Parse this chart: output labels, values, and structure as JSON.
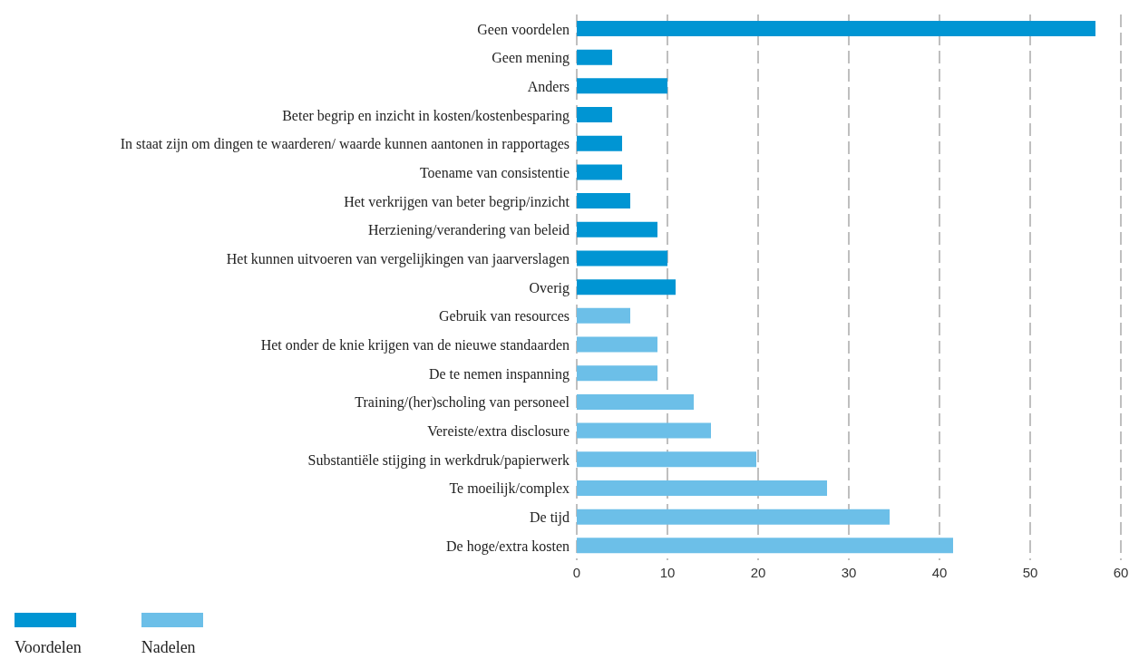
{
  "chart_data": {
    "type": "bar",
    "orientation": "horizontal",
    "categories": [
      "Geen voordelen",
      "Geen mening",
      "Anders",
      "Beter begrip en inzicht in kosten/kostenbesparing",
      "In staat zijn om dingen te waarderen/ waarde kunnen aantonen in rapportages",
      "Toename van consistentie",
      "Het verkrijgen van beter begrip/inzicht",
      "Herziening/verandering van beleid",
      "Het kunnen uitvoeren van vergelijkingen van jaarverslagen",
      "Overig",
      "Gebruik van resources",
      "Het onder de knie krijgen van de nieuwe standaarden",
      "De te nemen inspanning",
      "Training/(her)scholing van personeel",
      "Vereiste/extra disclosure",
      "Substantiële stijging in werkdruk/papierwerk",
      "Te moeilijk/complex",
      "De tijd",
      "De hoge/extra kosten"
    ],
    "series": [
      {
        "name": "Voordelen",
        "color": "#0095d3",
        "values": [
          57.2,
          3.9,
          10,
          3.9,
          5,
          5,
          5.9,
          8.9,
          10,
          10.9,
          null,
          null,
          null,
          null,
          null,
          null,
          null,
          null,
          null
        ]
      },
      {
        "name": "Nadelen",
        "color": "#6cbfe8",
        "values": [
          null,
          null,
          null,
          null,
          null,
          null,
          null,
          null,
          null,
          null,
          5.9,
          8.9,
          8.9,
          12.9,
          14.8,
          19.8,
          27.6,
          34.5,
          41.5
        ]
      }
    ],
    "xlim": [
      0,
      60
    ],
    "xticks": [
      0,
      10,
      20,
      30,
      40,
      50,
      60
    ],
    "grid": "x",
    "legend": "bottom left"
  }
}
